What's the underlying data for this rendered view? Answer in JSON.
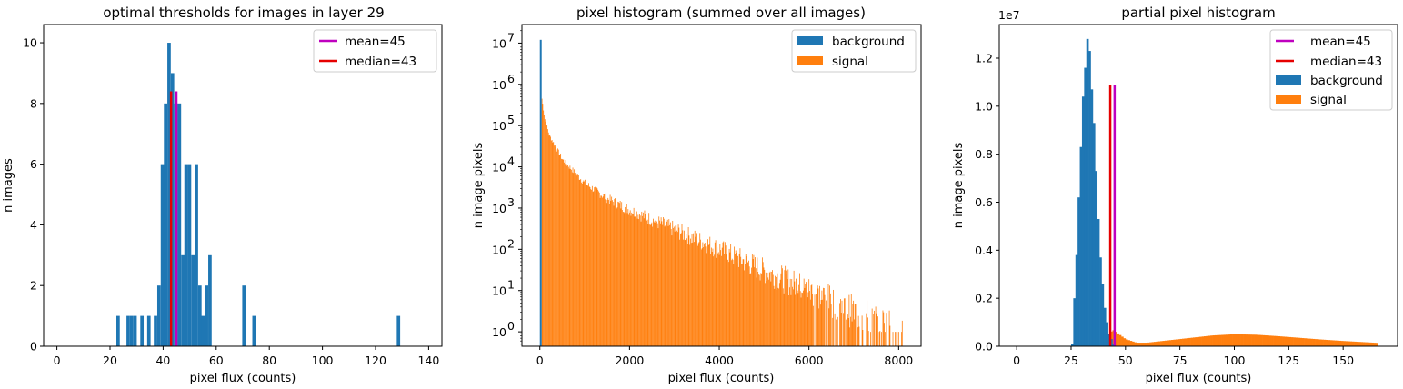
{
  "colors": {
    "background": "#1f77b4",
    "signal": "#ff7f0e",
    "mean": "#bf00bf",
    "median": "#e60000"
  },
  "chart_data": [
    {
      "type": "bar",
      "title": "optimal thresholds for images in layer 29",
      "xlabel": "pixel flux (counts)",
      "ylabel": "n images",
      "xlim": [
        -5,
        145
      ],
      "ylim": [
        0,
        10.6
      ],
      "xticks": [
        0,
        20,
        40,
        60,
        80,
        100,
        120,
        140
      ],
      "yticks": [
        0,
        2,
        4,
        6,
        8,
        10
      ],
      "bin_width": 1.28,
      "bars": [
        {
          "x": 22.4,
          "y": 1
        },
        {
          "x": 26.2,
          "y": 1
        },
        {
          "x": 27.5,
          "y": 1
        },
        {
          "x": 28.8,
          "y": 1
        },
        {
          "x": 31.4,
          "y": 1
        },
        {
          "x": 34.0,
          "y": 1
        },
        {
          "x": 36.5,
          "y": 1
        },
        {
          "x": 37.8,
          "y": 2
        },
        {
          "x": 39.1,
          "y": 6
        },
        {
          "x": 40.3,
          "y": 8
        },
        {
          "x": 41.6,
          "y": 10
        },
        {
          "x": 42.9,
          "y": 9
        },
        {
          "x": 44.2,
          "y": 8
        },
        {
          "x": 45.5,
          "y": 8
        },
        {
          "x": 46.8,
          "y": 3
        },
        {
          "x": 48.0,
          "y": 6
        },
        {
          "x": 49.3,
          "y": 6
        },
        {
          "x": 50.6,
          "y": 3
        },
        {
          "x": 51.9,
          "y": 6
        },
        {
          "x": 53.2,
          "y": 2
        },
        {
          "x": 54.4,
          "y": 1
        },
        {
          "x": 55.7,
          "y": 2
        },
        {
          "x": 57.0,
          "y": 3
        },
        {
          "x": 69.8,
          "y": 2
        },
        {
          "x": 73.6,
          "y": 1
        },
        {
          "x": 128.0,
          "y": 1
        }
      ],
      "vlines": [
        {
          "label": "mean=45",
          "x": 45,
          "ymax": 8.4,
          "color": "#bf00bf"
        },
        {
          "label": "median=43",
          "x": 43,
          "ymax": 8.4,
          "color": "#e60000"
        }
      ],
      "legend": {
        "loc": "upper right",
        "entries": [
          "mean=45",
          "median=43"
        ]
      }
    },
    {
      "type": "bar",
      "scale": "log",
      "title": "pixel histogram (summed over all images)",
      "xlabel": "pixel flux (counts)",
      "ylabel": "n image pixels",
      "xlim": [
        -400,
        8500
      ],
      "ylim_log10": [
        -0.35,
        7.45
      ],
      "xticks": [
        0,
        2000,
        4000,
        6000,
        8000
      ],
      "yticks_exp": [
        0,
        1,
        2,
        3,
        4,
        5,
        6,
        7
      ],
      "background": {
        "label": "background",
        "x": 20,
        "y": 12000000
      },
      "signal_decay": [
        {
          "x": 40,
          "y": 450000
        },
        {
          "x": 100,
          "y": 150000
        },
        {
          "x": 200,
          "y": 60000
        },
        {
          "x": 500,
          "y": 15000
        },
        {
          "x": 1000,
          "y": 4000
        },
        {
          "x": 1500,
          "y": 1700
        },
        {
          "x": 2000,
          "y": 900
        },
        {
          "x": 3000,
          "y": 300
        },
        {
          "x": 4000,
          "y": 100
        },
        {
          "x": 5000,
          "y": 30
        },
        {
          "x": 6000,
          "y": 10
        },
        {
          "x": 7000,
          "y": 3
        },
        {
          "x": 8100,
          "y": 1
        }
      ],
      "legend": {
        "loc": "upper right",
        "entries": [
          "background",
          "signal"
        ]
      }
    },
    {
      "type": "bar",
      "title": "partial pixel histogram",
      "xlabel": "pixel flux (counts)",
      "ylabel": "n image pixels",
      "offset_text": "1e7",
      "xlim": [
        -8,
        175
      ],
      "ylim": [
        0,
        1.34
      ],
      "xticks": [
        0,
        25,
        50,
        75,
        100,
        125,
        150
      ],
      "yticks": [
        0.0,
        0.2,
        0.4,
        0.6,
        0.8,
        1.0,
        1.2
      ],
      "background_bins": [
        {
          "x": 25,
          "y": 0.01
        },
        {
          "x": 26,
          "y": 0.2
        },
        {
          "x": 27,
          "y": 0.38
        },
        {
          "x": 28,
          "y": 0.62
        },
        {
          "x": 29,
          "y": 0.83
        },
        {
          "x": 30,
          "y": 1.04
        },
        {
          "x": 31,
          "y": 1.16
        },
        {
          "x": 32,
          "y": 1.28
        },
        {
          "x": 33,
          "y": 1.23
        },
        {
          "x": 34,
          "y": 1.07
        },
        {
          "x": 35,
          "y": 0.93
        },
        {
          "x": 36,
          "y": 0.73
        },
        {
          "x": 37,
          "y": 0.53
        },
        {
          "x": 38,
          "y": 0.37
        },
        {
          "x": 39,
          "y": 0.26
        },
        {
          "x": 40,
          "y": 0.16
        },
        {
          "x": 41,
          "y": 0.1
        },
        {
          "x": 42,
          "y": 0.05
        },
        {
          "x": 43,
          "y": 0.03
        },
        {
          "x": 44,
          "y": 0.01
        }
      ],
      "signal_curve": [
        {
          "x": 40,
          "y": 0.0
        },
        {
          "x": 44,
          "y": 0.07
        },
        {
          "x": 50,
          "y": 0.03
        },
        {
          "x": 55,
          "y": 0.015
        },
        {
          "x": 60,
          "y": 0.015
        },
        {
          "x": 70,
          "y": 0.025
        },
        {
          "x": 80,
          "y": 0.035
        },
        {
          "x": 90,
          "y": 0.045
        },
        {
          "x": 100,
          "y": 0.05
        },
        {
          "x": 110,
          "y": 0.048
        },
        {
          "x": 120,
          "y": 0.042
        },
        {
          "x": 130,
          "y": 0.035
        },
        {
          "x": 140,
          "y": 0.028
        },
        {
          "x": 150,
          "y": 0.022
        },
        {
          "x": 160,
          "y": 0.017
        },
        {
          "x": 166,
          "y": 0.014
        }
      ],
      "vlines": [
        {
          "label": "mean=45",
          "x": 45,
          "ymax": 1.09,
          "color": "#bf00bf"
        },
        {
          "label": "median=43",
          "x": 43,
          "ymax": 1.09,
          "color": "#e60000"
        }
      ],
      "legend": {
        "loc": "upper right",
        "entries": [
          "mean=45",
          "median=43",
          "background",
          "signal"
        ]
      }
    }
  ]
}
